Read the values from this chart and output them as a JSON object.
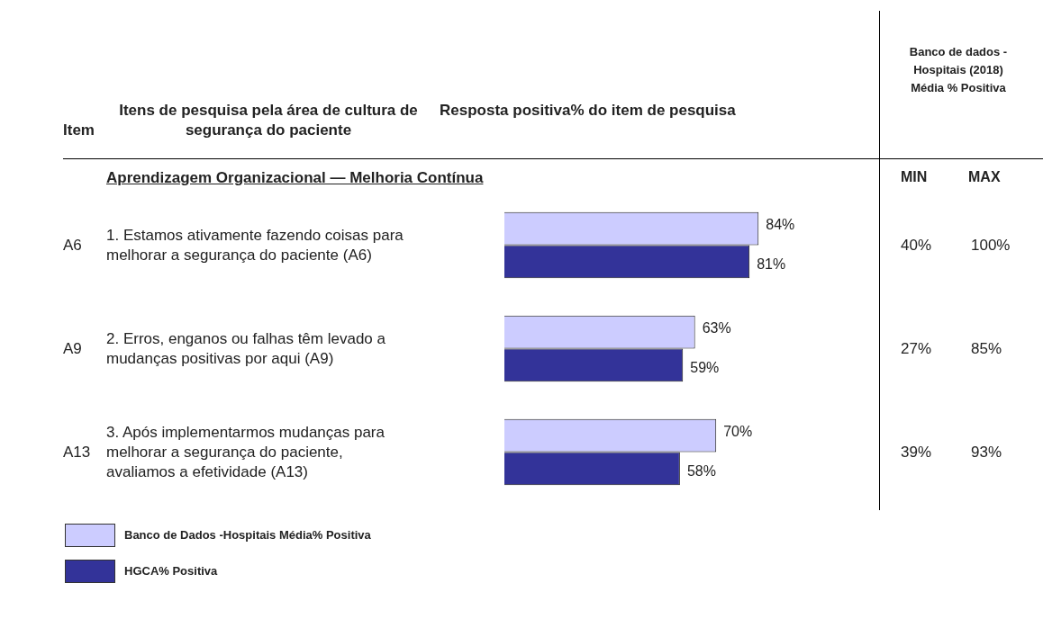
{
  "chart_data": {
    "type": "bar",
    "orientation": "horizontal",
    "title": "Aprendizagem Organizacional — Melhoria Contínua",
    "xlabel": "Resposta positiva% do item de pesquisa",
    "ylabel": "Itens de pesquisa pela área de cultura de segurança do paciente",
    "categories": [
      "1. Estamos ativamente fazendo coisas para melhorar a segurança do paciente (A6)",
      "2. Erros, enganos ou falhas têm levado a mudanças positivas por aqui (A9)",
      "3. Após implementarmos mudanças para melhorar a segurança do paciente, avaliamos a efetividade (A13)"
    ],
    "series": [
      {
        "name": "Banco de Dados -Hospitais Média% Positiva",
        "color": "#ccccff",
        "values": [
          84,
          63,
          70
        ],
        "value_labels": [
          "84%",
          "63%",
          "70%"
        ]
      },
      {
        "name": "HGCA% Positiva",
        "color": "#333399",
        "values": [
          81,
          59,
          58
        ],
        "value_labels": [
          "81%",
          "59%",
          "58%"
        ]
      }
    ],
    "tick_labels": false,
    "legend": "bottom left",
    "annotations": [
      "Item",
      "A6",
      "A9",
      "A13",
      "Banco de dados - Hospitais (2018) Média % Positiva",
      "MIN",
      "MAX",
      "40%",
      "100%",
      "27%",
      "85%",
      "39%",
      "93%"
    ]
  }
}
